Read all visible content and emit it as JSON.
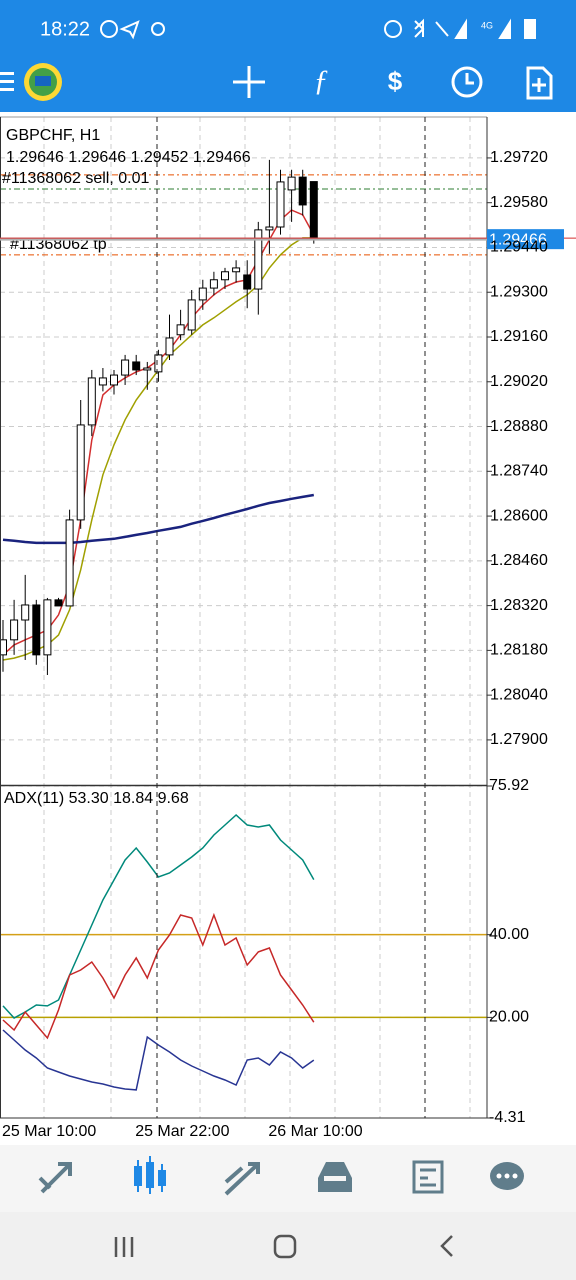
{
  "status_bar": {
    "time": "18:22",
    "network": "4G"
  },
  "chart_data": [
    {
      "type": "candlestick",
      "title": "GBPCHF, H1",
      "subtitle": "1.29646 1.29646 1.29452 1.29466",
      "categories": [
        "25 Mar 10:00",
        null,
        null,
        null,
        null,
        null,
        null,
        null,
        null,
        null,
        null,
        null,
        "25 Mar 22:00",
        null,
        null,
        null,
        null,
        null,
        null,
        null,
        null,
        null,
        null,
        null,
        "26 Mar 10:00",
        null,
        null,
        null,
        null
      ],
      "open": [
        1.28166,
        1.28213,
        1.28275,
        1.28322,
        1.28166,
        1.28338,
        1.28319,
        1.28588,
        1.28885,
        1.2901,
        1.2901,
        1.29041,
        1.29082,
        1.29057,
        1.29051,
        1.29104,
        1.29167,
        1.29182,
        1.29276,
        1.29313,
        1.29339,
        1.29364,
        1.29354,
        1.2931,
        1.29495,
        1.29504,
        1.2962,
        1.2966,
        1.29646
      ],
      "high": [
        1.28275,
        1.28338,
        1.28416,
        1.28338,
        1.28344,
        1.28344,
        1.2862,
        1.28963,
        1.29057,
        1.29063,
        1.29057,
        1.29104,
        1.29104,
        1.29082,
        1.2912,
        1.2923,
        1.29245,
        1.29307,
        1.29339,
        1.29364,
        1.29376,
        1.294,
        1.294,
        1.2952,
        1.29714,
        1.29683,
        1.29683,
        1.29683,
        1.29646
      ],
      "low": [
        1.28113,
        1.28166,
        1.2815,
        1.28135,
        1.28103,
        1.28319,
        1.28319,
        1.2856,
        1.2885,
        1.2899,
        1.2898,
        1.2901,
        1.29041,
        1.28995,
        1.2902,
        1.29088,
        1.2915,
        1.29167,
        1.29245,
        1.2929,
        1.2931,
        1.2933,
        1.2925,
        1.2923,
        1.2942,
        1.2948,
        1.2952,
        1.2954,
        1.29452
      ],
      "close": [
        1.28213,
        1.28275,
        1.28322,
        1.28166,
        1.28338,
        1.28319,
        1.28588,
        1.28885,
        1.29032,
        1.29032,
        1.29041,
        1.29088,
        1.29057,
        1.29063,
        1.29104,
        1.29157,
        1.29198,
        1.29276,
        1.29313,
        1.29339,
        1.29364,
        1.29376,
        1.2931,
        1.29495,
        1.29504,
        1.29645,
        1.2966,
        1.29573,
        1.29466
      ],
      "up_color": "#ffffff",
      "down_color": "#000000",
      "series": [
        {
          "color": "#d32f2f",
          "values": [
            1.28166,
            1.28197,
            1.28213,
            1.28228,
            1.28244,
            1.28291,
            1.28385,
            1.28588,
            1.28838,
            1.28979,
            1.2901,
            1.29032,
            1.29051,
            1.29063,
            1.29088,
            1.2912,
            1.29167,
            1.2922,
            1.2926,
            1.29292,
            1.29317,
            1.29332,
            1.29339,
            1.29401,
            1.29464,
            1.29526,
            1.29557,
            1.29542,
            1.29479
          ]
        },
        {
          "color": "#a0a000",
          "values": [
            1.2815,
            1.28156,
            1.28166,
            1.28181,
            1.28197,
            1.28228,
            1.28307,
            1.28432,
            1.28588,
            1.28729,
            1.28823,
            1.28901,
            1.28963,
            1.2901,
            1.29057,
            1.29104,
            1.29135,
            1.29167,
            1.29198,
            1.2922,
            1.29245,
            1.2927,
            1.29292,
            1.29323,
            1.29376,
            1.29417,
            1.29448,
            1.2947,
            1.2947
          ]
        },
        {
          "color": "#1a237e",
          "values": [
            1.28526,
            1.28523,
            1.28519,
            1.28516,
            1.28516,
            1.28516,
            1.28516,
            1.28519,
            1.28523,
            1.28526,
            1.28529,
            1.28535,
            1.28541,
            1.28547,
            1.28554,
            1.2856,
            1.28566,
            1.28576,
            1.28585,
            1.28594,
            1.28604,
            1.28613,
            1.28622,
            1.28632,
            1.28641,
            1.28647,
            1.28654,
            1.2866,
            1.28666
          ]
        }
      ],
      "levels": [
        {
          "name": "#11368062 sell, 0.01",
          "value": 1.29667,
          "color": "#e65100"
        },
        {
          "value": 1.29623,
          "color": "#2e7d32"
        },
        {
          "name": "#11368062 tp",
          "value": 1.29417,
          "color": "#e65100"
        }
      ],
      "last_price": {
        "value": 1.29466,
        "label": "1.29466",
        "color": "#1e88e5"
      },
      "ylim": [
        1.27759,
        1.29848
      ],
      "yticks": [
        {
          "value": 1.2972,
          "label": "1.29720"
        },
        {
          "value": 1.2958,
          "label": "1.29580"
        },
        {
          "value": 1.2944,
          "label": "1.29440"
        },
        {
          "value": 1.293,
          "label": "1.29300"
        },
        {
          "value": 1.2916,
          "label": "1.29160"
        },
        {
          "value": 1.2902,
          "label": "1.29020"
        },
        {
          "value": 1.2888,
          "label": "1.28880"
        },
        {
          "value": 1.2874,
          "label": "1.28740"
        },
        {
          "value": 1.286,
          "label": "1.28600"
        },
        {
          "value": 1.2846,
          "label": "1.28460"
        },
        {
          "value": 1.2832,
          "label": "1.28320"
        },
        {
          "value": 1.2818,
          "label": "1.28180"
        },
        {
          "value": 1.2804,
          "label": "1.28040"
        },
        {
          "value": 1.279,
          "label": "1.27900"
        }
      ],
      "grid": true
    },
    {
      "type": "line",
      "title": "ADX(11) 53.30 18.84 9.68",
      "series": [
        {
          "color": "#00897b",
          "values": [
            22.79,
            19.86,
            21.3,
            23.0,
            22.79,
            24.21,
            30.25,
            36.29,
            42.33,
            48.37,
            53.2,
            58.04,
            60.94,
            57.55,
            53.93,
            54.9,
            56.83,
            58.76,
            60.94,
            64.08,
            66.5,
            68.91,
            66.5,
            66.01,
            66.5,
            62.87,
            60.45,
            58.04,
            53.3
          ]
        },
        {
          "color": "#c62828",
          "values": [
            19.37,
            16.95,
            21.3,
            18.16,
            15.02,
            21.79,
            30.25,
            31.46,
            33.39,
            29.52,
            24.69,
            30.25,
            34.36,
            29.52,
            36.29,
            39.91,
            44.75,
            44.02,
            37.5,
            44.75,
            37.5,
            39.19,
            32.66,
            35.83,
            36.77,
            30.25,
            26.62,
            23.0,
            18.84
          ]
        },
        {
          "color": "#283593",
          "values": [
            16.96,
            14.54,
            12.12,
            10.19,
            7.77,
            6.81,
            5.84,
            5.12,
            4.39,
            3.91,
            3.19,
            2.71,
            2.47,
            15.26,
            13.33,
            11.64,
            9.71,
            8.26,
            7.05,
            5.84,
            4.87,
            3.66,
            9.71,
            10.19,
            8.5,
            11.64,
            10.19,
            7.77,
            9.68
          ]
        }
      ],
      "levels": [
        {
          "value": 40,
          "color": "#d4a017"
        },
        {
          "value": 20,
          "color": "#b8a000"
        }
      ],
      "ylim": [
        -4.31,
        75.92
      ],
      "yticks": [
        75.92,
        {
          "value": 40,
          "label": "40.00"
        },
        {
          "value": 20,
          "label": "20.00"
        },
        -4.31
      ],
      "grid": true
    }
  ]
}
